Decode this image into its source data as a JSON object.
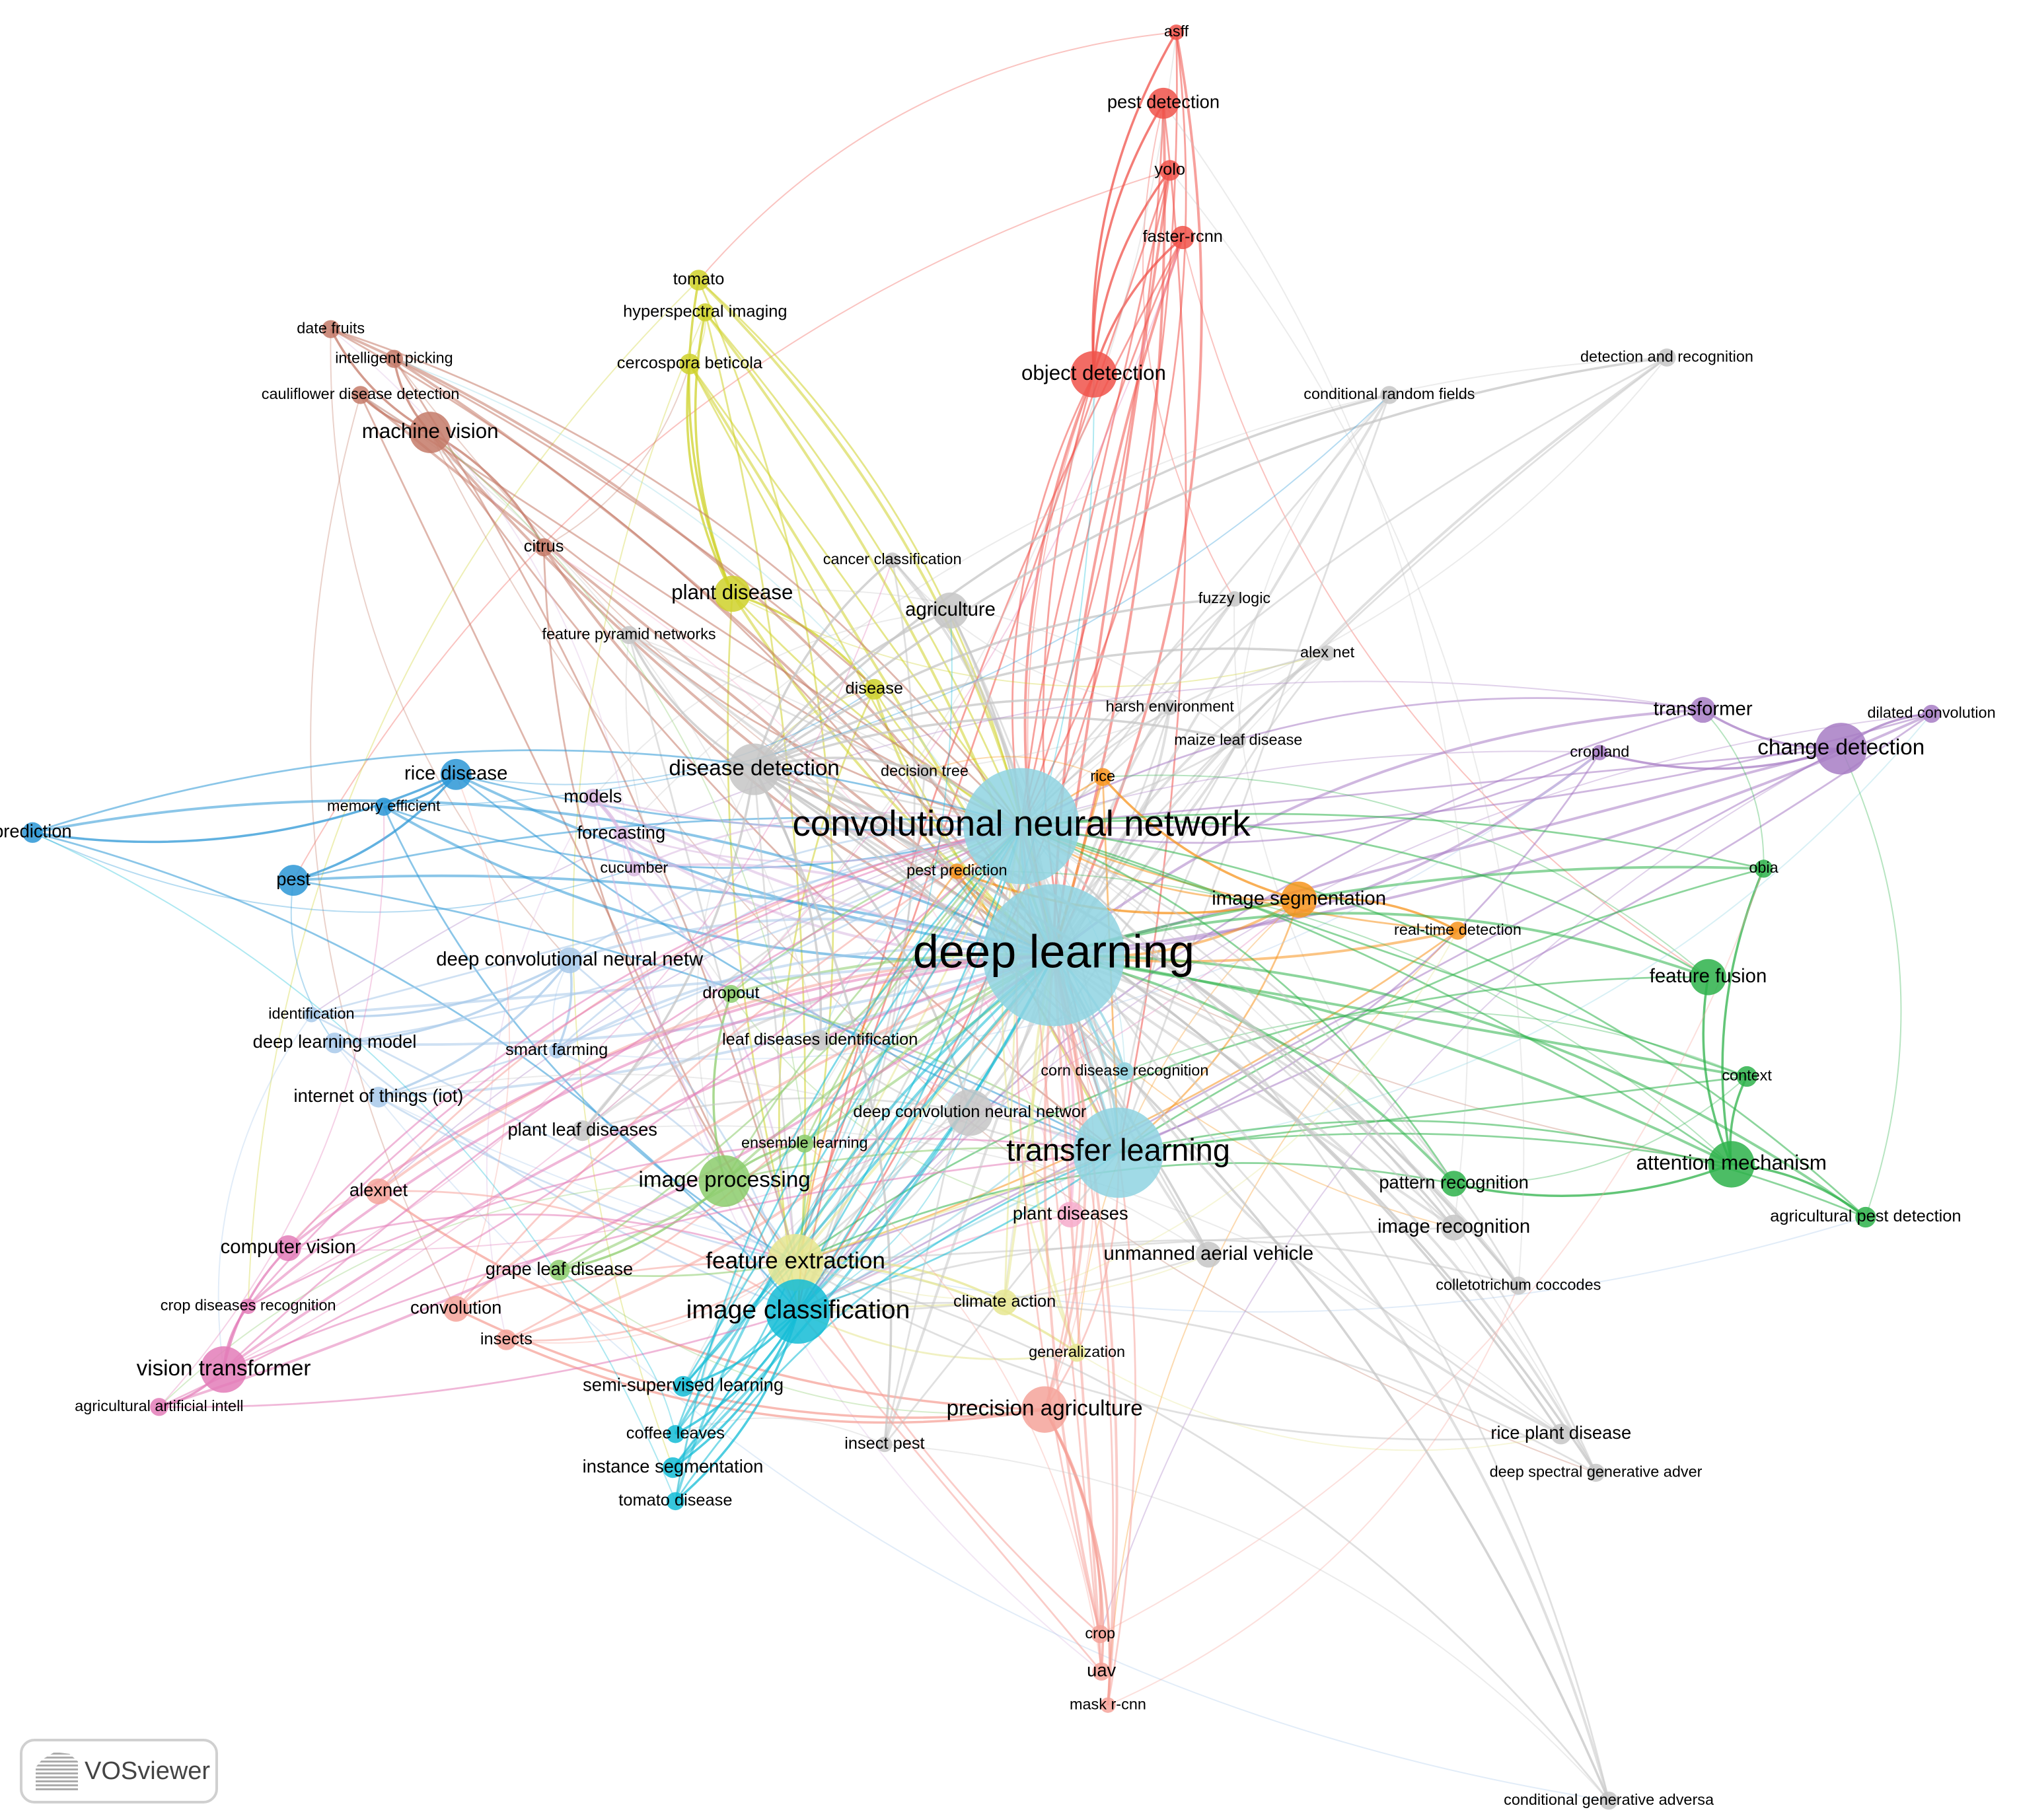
{
  "clusters": {
    "red": "#f0524a",
    "yellow": "#cfd12a",
    "brown": "#c47a68",
    "blue": "#2c97d6",
    "lightblue": "#a8c9ea",
    "cyan": "#13bcd6",
    "teal": "#8fd4e2",
    "orange": "#f7941d",
    "purple": "#a77cc4",
    "green": "#2db24a",
    "lightgreen": "#8ccc6c",
    "pink": "#e37cb8",
    "salmon": "#f5a39a",
    "gray": "#c6c6c6",
    "lilac": "#d9b8e0",
    "lightyellow": "#e6e690",
    "rose": "#f6aacb"
  },
  "nodes": [
    {
      "label": "asff",
      "cluster": "red"
    },
    {
      "label": "pest detection",
      "cluster": "red"
    },
    {
      "label": "yolo",
      "cluster": "red"
    },
    {
      "label": "faster-rcnn",
      "cluster": "red"
    },
    {
      "label": "object detection",
      "cluster": "red"
    },
    {
      "label": "tomato",
      "cluster": "yellow"
    },
    {
      "label": "hyperspectral imaging",
      "cluster": "yellow"
    },
    {
      "label": "cercospora beticola",
      "cluster": "yellow"
    },
    {
      "label": "plant disease",
      "cluster": "yellow"
    },
    {
      "label": "disease",
      "cluster": "yellow"
    },
    {
      "label": "date fruits",
      "cluster": "brown"
    },
    {
      "label": "intelligent picking",
      "cluster": "brown"
    },
    {
      "label": "cauliflower disease detection",
      "cluster": "brown"
    },
    {
      "label": "machine vision",
      "cluster": "brown"
    },
    {
      "label": "citrus",
      "cluster": "brown"
    },
    {
      "label": "cancer classification",
      "cluster": "gray"
    },
    {
      "label": "agriculture",
      "cluster": "gray"
    },
    {
      "label": "feature pyramid networks",
      "cluster": "gray"
    },
    {
      "label": "fuzzy logic",
      "cluster": "gray"
    },
    {
      "label": "alex net",
      "cluster": "gray"
    },
    {
      "label": "harsh environment",
      "cluster": "gray"
    },
    {
      "label": "maize leaf disease",
      "cluster": "gray"
    },
    {
      "label": "conditional random fields",
      "cluster": "gray"
    },
    {
      "label": "detection and recognition",
      "cluster": "gray"
    },
    {
      "label": "transformer",
      "cluster": "purple"
    },
    {
      "label": "cropland",
      "cluster": "purple"
    },
    {
      "label": "dilated convolution",
      "cluster": "purple"
    },
    {
      "label": "change detection",
      "cluster": "purple"
    },
    {
      "label": "rice disease",
      "cluster": "blue"
    },
    {
      "label": "memory efficient",
      "cluster": "blue"
    },
    {
      "label": "prediction",
      "cluster": "blue"
    },
    {
      "label": "pest",
      "cluster": "blue"
    },
    {
      "label": "disease detection",
      "cluster": "gray"
    },
    {
      "label": "models",
      "cluster": "lilac"
    },
    {
      "label": "forecasting",
      "cluster": "lilac"
    },
    {
      "label": "cucumber",
      "cluster": "lilac"
    },
    {
      "label": "decision tree",
      "cluster": "gray"
    },
    {
      "label": "rice",
      "cluster": "orange"
    },
    {
      "label": "convolutional neural network",
      "cluster": "teal"
    },
    {
      "label": "pest prediction",
      "cluster": "orange"
    },
    {
      "label": "image segmentation",
      "cluster": "orange"
    },
    {
      "label": "real-time detection",
      "cluster": "orange"
    },
    {
      "label": "deep learning",
      "cluster": "teal"
    },
    {
      "label": "obia",
      "cluster": "green"
    },
    {
      "label": "feature fusion",
      "cluster": "green"
    },
    {
      "label": "deep convolutional neural netw",
      "cluster": "lightblue"
    },
    {
      "label": "dropout",
      "cluster": "lightgreen"
    },
    {
      "label": "identification",
      "cluster": "lightblue"
    },
    {
      "label": "deep learning model",
      "cluster": "lightblue"
    },
    {
      "label": "leaf diseases identification",
      "cluster": "gray"
    },
    {
      "label": "smart farming",
      "cluster": "lightblue"
    },
    {
      "label": "corn disease recognition",
      "cluster": "teal"
    },
    {
      "label": "context",
      "cluster": "green"
    },
    {
      "label": "internet of things (iot)",
      "cluster": "lightblue"
    },
    {
      "label": "deep convolution neural networ",
      "cluster": "gray"
    },
    {
      "label": "plant leaf diseases",
      "cluster": "gray"
    },
    {
      "label": "ensemble learning",
      "cluster": "lightgreen"
    },
    {
      "label": "transfer learning",
      "cluster": "teal"
    },
    {
      "label": "attention mechanism",
      "cluster": "green"
    },
    {
      "label": "pattern recognition",
      "cluster": "green"
    },
    {
      "label": "alexnet",
      "cluster": "salmon"
    },
    {
      "label": "image processing",
      "cluster": "lightgreen"
    },
    {
      "label": "image recognition",
      "cluster": "gray"
    },
    {
      "label": "plant diseases",
      "cluster": "rose"
    },
    {
      "label": "agricultural pest detection",
      "cluster": "green"
    },
    {
      "label": "computer vision",
      "cluster": "pink"
    },
    {
      "label": "unmanned aerial vehicle",
      "cluster": "gray"
    },
    {
      "label": "feature extraction",
      "cluster": "lightyellow"
    },
    {
      "label": "grape leaf disease",
      "cluster": "lightgreen"
    },
    {
      "label": "colletotrichum coccodes",
      "cluster": "gray"
    },
    {
      "label": "crop diseases recognition",
      "cluster": "pink"
    },
    {
      "label": "convolution",
      "cluster": "salmon"
    },
    {
      "label": "climate action",
      "cluster": "lightyellow"
    },
    {
      "label": "image classification",
      "cluster": "cyan"
    },
    {
      "label": "insects",
      "cluster": "salmon"
    },
    {
      "label": "generalization",
      "cluster": "lightyellow"
    },
    {
      "label": "vision transformer",
      "cluster": "pink"
    },
    {
      "label": "semi-supervised learning",
      "cluster": "cyan"
    },
    {
      "label": "agricultural artificial intell",
      "cluster": "pink"
    },
    {
      "label": "precision agriculture",
      "cluster": "salmon"
    },
    {
      "label": "rice plant disease",
      "cluster": "gray"
    },
    {
      "label": "coffee leaves",
      "cluster": "cyan"
    },
    {
      "label": "insect pest",
      "cluster": "gray"
    },
    {
      "label": "instance segmentation",
      "cluster": "cyan"
    },
    {
      "label": "deep spectral generative adver",
      "cluster": "gray"
    },
    {
      "label": "tomato disease",
      "cluster": "cyan"
    },
    {
      "label": "crop",
      "cluster": "salmon"
    },
    {
      "label": "uav",
      "cluster": "salmon"
    },
    {
      "label": "mask r-cnn",
      "cluster": "salmon"
    },
    {
      "label": "conditional generative adversa",
      "cluster": "gray"
    }
  ],
  "logo": {
    "text": "VOSviewer"
  }
}
